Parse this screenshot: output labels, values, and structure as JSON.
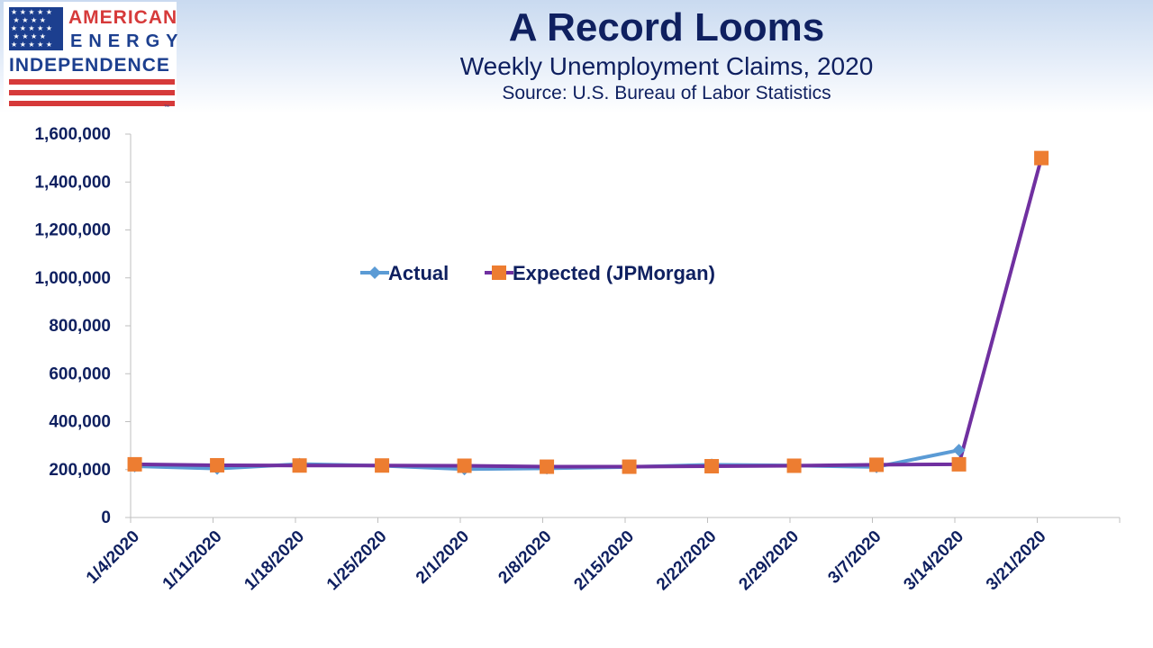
{
  "header": {
    "title": "A Record Looms",
    "subtitle": "Weekly Unemployment Claims, 2020",
    "source": "Source: U.S. Bureau of Labor Statistics"
  },
  "logo": {
    "line1": "AMERICAN",
    "line2": "ENERGY",
    "line3": "INDEPENDENCE",
    "trademark": "TM",
    "colors": {
      "red": "#d63a3a",
      "blue": "#1c3f8f"
    }
  },
  "chart_data": {
    "type": "line",
    "categories": [
      "1/4/2020",
      "1/11/2020",
      "1/18/2020",
      "1/25/2020",
      "2/1/2020",
      "2/8/2020",
      "2/15/2020",
      "2/22/2020",
      "2/29/2020",
      "3/7/2020",
      "3/14/2020",
      "3/21/2020"
    ],
    "series": [
      {
        "name": "Actual",
        "color": "#5b9bd5",
        "marker": "diamond",
        "values": [
          214000,
          204000,
          223000,
          216000,
          202000,
          205000,
          211000,
          220000,
          217000,
          211000,
          281000,
          null
        ]
      },
      {
        "name": "Expected (JPMorgan)",
        "color": "#7030a0",
        "marker_color": "#ed7d31",
        "marker": "square",
        "values": [
          222000,
          218000,
          217000,
          217000,
          216000,
          212000,
          212000,
          214000,
          216000,
          220000,
          222000,
          1500000
        ]
      }
    ],
    "yticks": [
      "0",
      "200,000",
      "400,000",
      "600,000",
      "800,000",
      "1,000,000",
      "1,200,000",
      "1,400,000",
      "1,600,000"
    ],
    "ylim": [
      0,
      1600000
    ],
    "legend": "inside-top-left",
    "grid": false
  }
}
